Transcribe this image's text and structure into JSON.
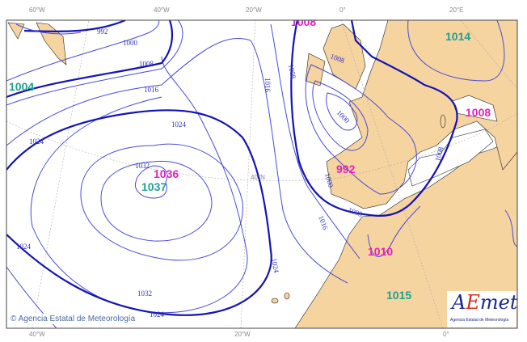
{
  "top_ticks": [
    "60°W",
    "40°W",
    "20°W",
    "0°",
    "20°E"
  ],
  "bottom_ticks": [
    "40°W",
    "20°W",
    "0°"
  ],
  "inner_tick": "40°N",
  "isobar_labels": [
    "992",
    "1000",
    "1008",
    "1016",
    "1024",
    "1024",
    "1024",
    "1024",
    "1032",
    "1032",
    "1016",
    "1008",
    "1024",
    "1016",
    "1000",
    "1008",
    "1008",
    "1000",
    "1008"
  ],
  "pressure_centers": [
    {
      "value": "1004",
      "type": "low",
      "color": "#20a090"
    },
    {
      "value": "1008",
      "type": "low",
      "color": "#e020c0"
    },
    {
      "value": "1014",
      "type": "high",
      "color": "#20a090"
    },
    {
      "value": "1008",
      "type": "low",
      "color": "#e020c0"
    },
    {
      "value": "992",
      "type": "low",
      "color": "#e020c0"
    },
    {
      "value": "1036",
      "type": "high",
      "color": "#e020c0"
    },
    {
      "value": "1037",
      "type": "high",
      "color": "#20a090"
    },
    {
      "value": "1010",
      "type": "low",
      "color": "#e020c0"
    },
    {
      "value": "1015",
      "type": "high",
      "color": "#20a090"
    }
  ],
  "colors": {
    "land": "#f5d4a0",
    "sea": "#ffffff",
    "isobar": "#4a4ad8",
    "isobar_major": "#1414b4"
  },
  "copyright": "© Agencia Estatal de Meteorología",
  "logo": {
    "text": "AEmet",
    "subtitle": "Agencia Estatal de Meteorología"
  }
}
